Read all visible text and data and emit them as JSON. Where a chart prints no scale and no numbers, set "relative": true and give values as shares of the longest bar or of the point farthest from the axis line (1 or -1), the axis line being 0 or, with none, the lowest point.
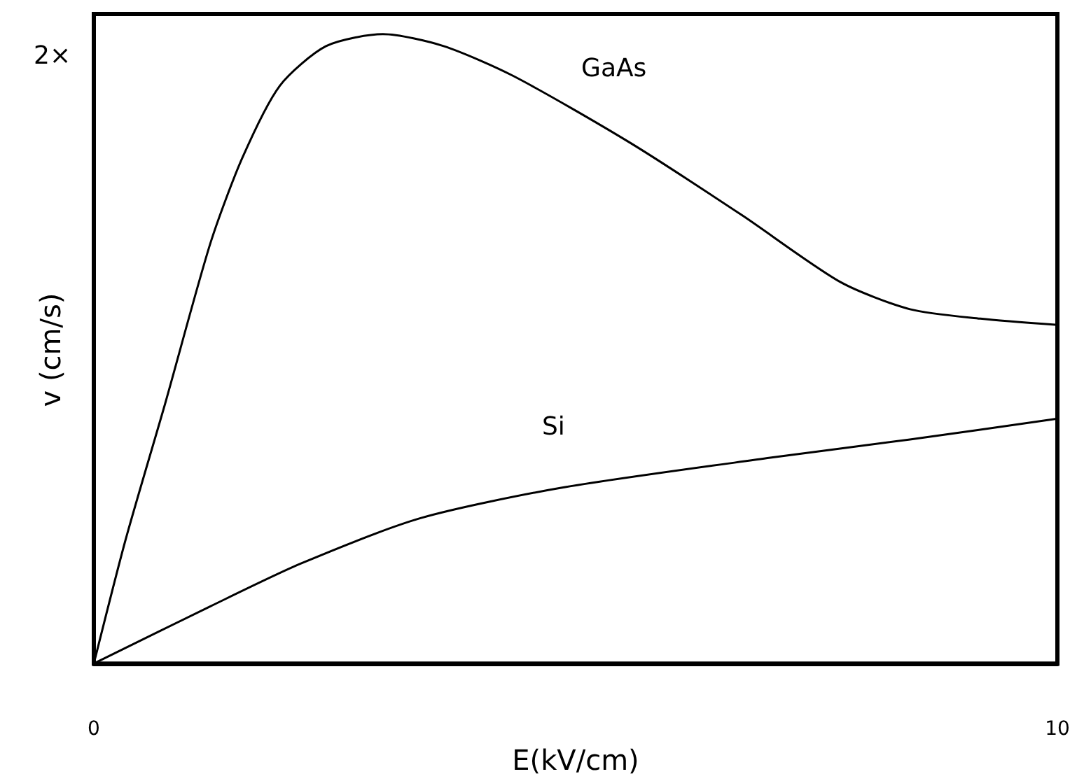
{
  "chart_data": {
    "type": "line",
    "xlabel": "E(kV/cm)",
    "ylabel": "v (cm/s)",
    "relative": true,
    "xlim": [
      0,
      10
    ],
    "xticks": [
      0,
      10
    ],
    "grid": false,
    "marker": "none",
    "line_style": "solid",
    "series": [
      {
        "color": "#000000",
        "x": [
          0,
          0.33,
          0.74,
          1.21,
          1.54,
          1.93,
          2.41,
          3.0,
          3.63,
          4.36,
          5.57,
          6.73,
          7.75,
          8.47,
          9.2,
          10
        ],
        "values": [
          0,
          0.197,
          0.413,
          0.668,
          0.803,
          0.918,
          0.981,
          1,
          0.981,
          0.933,
          0.827,
          0.712,
          0.606,
          0.563,
          0.548,
          0.538
        ]
      },
      {
        "color": "#000000",
        "x": [
          0,
          1.21,
          2.15,
          3.39,
          4.84,
          7.02,
          8.47,
          10
        ],
        "values": [
          0,
          0.091,
          0.159,
          0.231,
          0.279,
          0.327,
          0.356,
          0.389
        ]
      }
    ],
    "annotations": [
      "2×",
      "GaAs",
      "Si"
    ]
  }
}
